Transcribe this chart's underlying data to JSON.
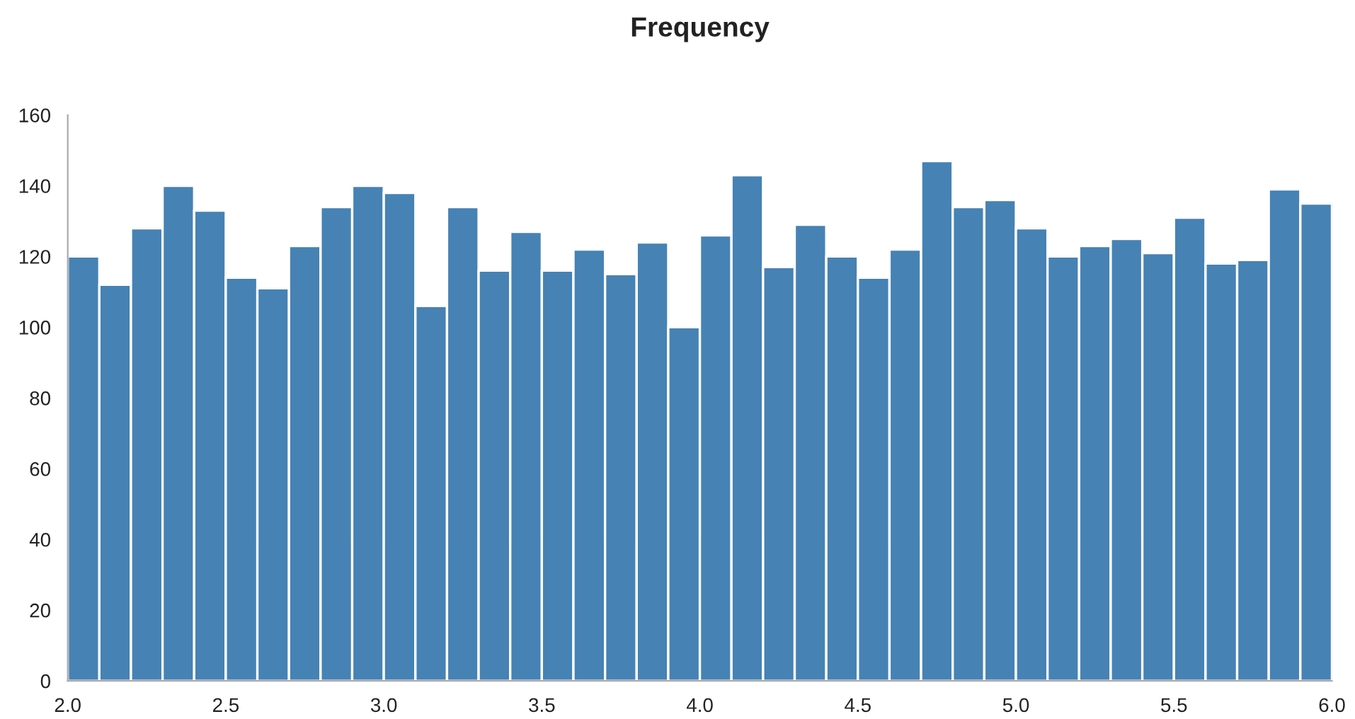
{
  "chart_data": {
    "type": "histogram",
    "title": "Frequency",
    "color": "#4682b4",
    "bins": [
      2.0,
      2.1,
      2.2,
      2.3,
      2.4,
      2.5,
      2.6,
      2.7,
      2.8,
      2.9,
      3.0,
      3.1,
      3.2,
      3.3,
      3.4,
      3.5,
      3.6,
      3.7,
      3.8,
      3.9,
      4.0,
      4.1,
      4.2,
      4.3,
      4.4,
      4.5,
      4.6,
      4.7,
      4.8,
      4.9,
      5.0,
      5.1,
      5.2,
      5.3,
      5.4,
      5.5,
      5.6,
      5.7,
      5.8,
      5.9,
      6.0
    ],
    "values": [
      120,
      112,
      128,
      140,
      133,
      114,
      111,
      123,
      134,
      140,
      138,
      106,
      134,
      116,
      127,
      116,
      122,
      115,
      124,
      100,
      126,
      143,
      117,
      129,
      120,
      114,
      122,
      147,
      134,
      136,
      128,
      120,
      123,
      125,
      121,
      131,
      118,
      119,
      139,
      135
    ],
    "xlim": [
      2.0,
      6.0
    ],
    "xticks": [
      {
        "value": 2.0,
        "label": "2.0"
      },
      2.5,
      {
        "value": 3.0,
        "label": "3.0"
      },
      3.5,
      {
        "value": 4.0,
        "label": "4.0"
      },
      4.5,
      {
        "value": 5.0,
        "label": "5.0"
      },
      5.5,
      {
        "value": 6.0,
        "label": "6.0"
      }
    ],
    "ylim": [
      0,
      160
    ],
    "yticks": [
      0,
      20,
      40,
      60,
      80,
      100,
      120,
      140,
      160
    ],
    "grid": false
  }
}
